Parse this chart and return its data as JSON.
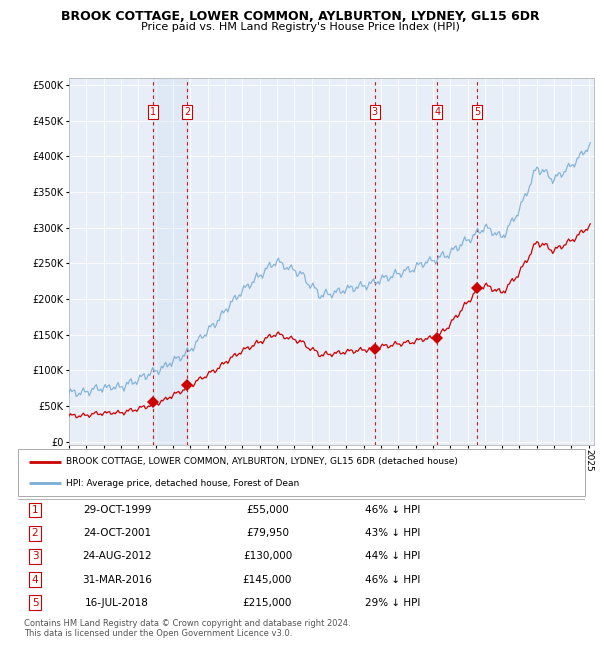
{
  "title": "BROOK COTTAGE, LOWER COMMON, AYLBURTON, LYDNEY, GL15 6DR",
  "subtitle": "Price paid vs. HM Land Registry's House Price Index (HPI)",
  "hpi_color": "#7aaed6",
  "price_color": "#cc0000",
  "background_color": "#ffffff",
  "plot_bg_color": "#e8eef8",
  "grid_color": "#ffffff",
  "sale_dates_x": [
    1999.83,
    2001.81,
    2012.65,
    2016.25,
    2018.54
  ],
  "sale_prices": [
    55000,
    79950,
    130000,
    145000,
    215000
  ],
  "sale_labels": [
    "1",
    "2",
    "3",
    "4",
    "5"
  ],
  "shade_pairs": [
    [
      1999.83,
      2001.81
    ]
  ],
  "legend_entries": [
    "BROOK COTTAGE, LOWER COMMON, AYLBURTON, LYDNEY, GL15 6DR (detached house)",
    "HPI: Average price, detached house, Forest of Dean"
  ],
  "table_rows": [
    [
      "1",
      "29-OCT-1999",
      "£55,000",
      "46% ↓ HPI"
    ],
    [
      "2",
      "24-OCT-2001",
      "£79,950",
      "43% ↓ HPI"
    ],
    [
      "3",
      "24-AUG-2012",
      "£130,000",
      "44% ↓ HPI"
    ],
    [
      "4",
      "31-MAR-2016",
      "£145,000",
      "46% ↓ HPI"
    ],
    [
      "5",
      "16-JUL-2018",
      "£215,000",
      "29% ↓ HPI"
    ]
  ],
  "footer": "Contains HM Land Registry data © Crown copyright and database right 2024.\nThis data is licensed under the Open Government Licence v3.0."
}
